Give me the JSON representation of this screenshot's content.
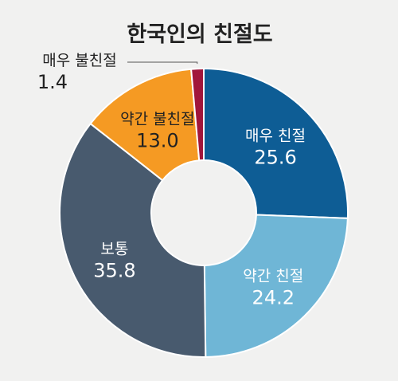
{
  "chart_data": {
    "type": "pie",
    "donut": true,
    "title": "한국인의 친절도",
    "categories": [
      "매우 친절",
      "약간 친절",
      "보통",
      "약간 불친절",
      "매우 불친절"
    ],
    "values": [
      25.6,
      24.2,
      35.8,
      13.0,
      1.4
    ],
    "value_labels": [
      "25.6",
      "24.2",
      "35.8",
      "13.0",
      "1.4"
    ],
    "colors": [
      "#0e5d95",
      "#6fb6d6",
      "#485a6e",
      "#f59a23",
      "#a1163b"
    ],
    "legend": "none"
  }
}
